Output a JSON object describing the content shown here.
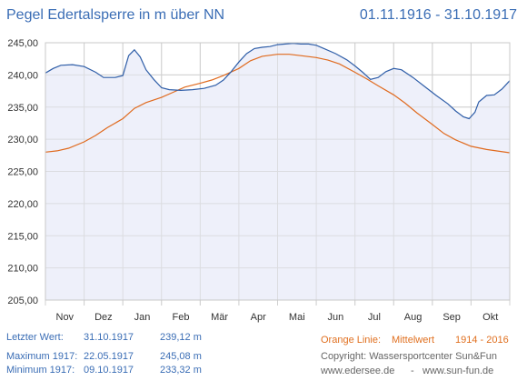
{
  "header": {
    "title": "Pegel Edertalsperre in m über NN",
    "date_range": "01.11.1916 - 31.10.1917"
  },
  "info": {
    "last_label": "Letzter Wert:",
    "last_date": "31.10.1917",
    "last_value": "239,12 m",
    "max_label": "Maximum 1917:",
    "max_date": "22.05.1917",
    "max_value": "245,08 m",
    "min_label": "Minimum  1917:",
    "min_date": "09.10.1917",
    "min_value": "233,32 m",
    "orange_label": "Orange Linie:",
    "orange_mean": "Mittelwert",
    "orange_years": "1914 - 2016",
    "copyright": "Copyright: Wassersportcenter Sun&Fun",
    "site1": "www.edersee.de",
    "sep": "-",
    "site2": "www.sun-fun.de"
  },
  "colors": {
    "series_1917": "#2f5ea8",
    "series_mean": "#e06a1e",
    "plot_fill": "#eef0fa",
    "grid": "#d0d0d0",
    "title": "#3a6db5"
  },
  "chart_data": {
    "type": "line",
    "x_unit": "month",
    "x_range": [
      0,
      12
    ],
    "ylim": [
      205,
      245
    ],
    "y_ticks": [
      "205,00",
      "210,00",
      "215,00",
      "220,00",
      "225,00",
      "230,00",
      "235,00",
      "240,00",
      "245,00"
    ],
    "y_tick_values": [
      205,
      210,
      215,
      220,
      225,
      230,
      235,
      240,
      245
    ],
    "x_labels": [
      "Nov",
      "Dez",
      "Jan",
      "Feb",
      "Mär",
      "Apr",
      "Mai",
      "Jun",
      "Jul",
      "Aug",
      "Sep",
      "Okt"
    ],
    "grid": true,
    "series": [
      {
        "key": "pegel_1917",
        "color": "#2f5ea8",
        "points": [
          [
            0.0,
            240.3
          ],
          [
            0.2,
            241.0
          ],
          [
            0.4,
            241.5
          ],
          [
            0.7,
            241.6
          ],
          [
            1.0,
            241.3
          ],
          [
            1.3,
            240.4
          ],
          [
            1.5,
            239.6
          ],
          [
            1.8,
            239.6
          ],
          [
            2.0,
            239.9
          ],
          [
            2.15,
            243.0
          ],
          [
            2.3,
            243.9
          ],
          [
            2.45,
            242.8
          ],
          [
            2.6,
            240.8
          ],
          [
            2.8,
            239.3
          ],
          [
            3.0,
            238.0
          ],
          [
            3.2,
            237.7
          ],
          [
            3.5,
            237.6
          ],
          [
            3.8,
            237.7
          ],
          [
            4.1,
            237.9
          ],
          [
            4.4,
            238.4
          ],
          [
            4.6,
            239.2
          ],
          [
            4.8,
            240.5
          ],
          [
            5.0,
            242.0
          ],
          [
            5.2,
            243.3
          ],
          [
            5.4,
            244.1
          ],
          [
            5.6,
            244.3
          ],
          [
            5.8,
            244.4
          ],
          [
            6.0,
            244.7
          ],
          [
            6.2,
            244.8
          ],
          [
            6.4,
            244.9
          ],
          [
            6.6,
            244.8
          ],
          [
            6.8,
            244.8
          ],
          [
            7.0,
            244.6
          ],
          [
            7.2,
            244.1
          ],
          [
            7.5,
            243.3
          ],
          [
            7.8,
            242.3
          ],
          [
            8.0,
            241.4
          ],
          [
            8.2,
            240.4
          ],
          [
            8.4,
            239.3
          ],
          [
            8.6,
            239.6
          ],
          [
            8.8,
            240.5
          ],
          [
            9.0,
            241.0
          ],
          [
            9.2,
            240.8
          ],
          [
            9.5,
            239.6
          ],
          [
            9.8,
            238.2
          ],
          [
            10.1,
            236.8
          ],
          [
            10.4,
            235.5
          ],
          [
            10.6,
            234.4
          ],
          [
            10.8,
            233.5
          ],
          [
            10.95,
            233.2
          ],
          [
            11.1,
            234.2
          ],
          [
            11.2,
            235.8
          ],
          [
            11.4,
            236.8
          ],
          [
            11.6,
            236.9
          ],
          [
            11.8,
            237.8
          ],
          [
            12.0,
            239.1
          ]
        ]
      },
      {
        "key": "mittelwert",
        "color": "#e06a1e",
        "points": [
          [
            0.0,
            228.0
          ],
          [
            0.3,
            228.2
          ],
          [
            0.6,
            228.6
          ],
          [
            1.0,
            229.6
          ],
          [
            1.3,
            230.6
          ],
          [
            1.6,
            231.8
          ],
          [
            2.0,
            233.2
          ],
          [
            2.3,
            234.8
          ],
          [
            2.6,
            235.7
          ],
          [
            3.0,
            236.5
          ],
          [
            3.3,
            237.3
          ],
          [
            3.6,
            238.1
          ],
          [
            4.0,
            238.7
          ],
          [
            4.3,
            239.2
          ],
          [
            4.6,
            239.9
          ],
          [
            5.0,
            241.0
          ],
          [
            5.3,
            242.2
          ],
          [
            5.6,
            242.9
          ],
          [
            6.0,
            243.2
          ],
          [
            6.3,
            243.2
          ],
          [
            6.6,
            243.0
          ],
          [
            7.0,
            242.7
          ],
          [
            7.3,
            242.3
          ],
          [
            7.6,
            241.7
          ],
          [
            8.0,
            240.4
          ],
          [
            8.3,
            239.4
          ],
          [
            8.6,
            238.3
          ],
          [
            9.0,
            236.9
          ],
          [
            9.3,
            235.6
          ],
          [
            9.6,
            234.1
          ],
          [
            10.0,
            232.3
          ],
          [
            10.3,
            230.9
          ],
          [
            10.6,
            229.9
          ],
          [
            11.0,
            228.9
          ],
          [
            11.4,
            228.4
          ],
          [
            12.0,
            227.9
          ]
        ]
      }
    ]
  }
}
